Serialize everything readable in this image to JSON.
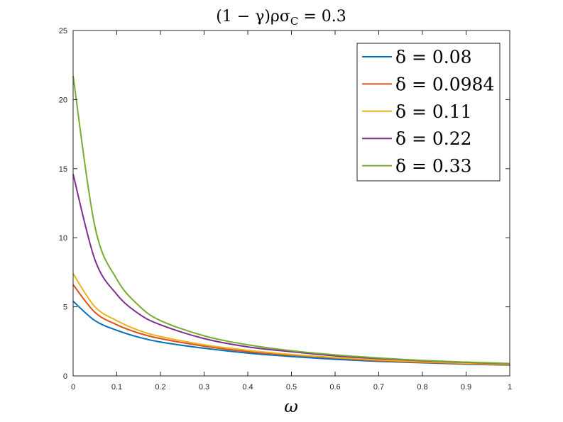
{
  "chart_data": {
    "type": "line",
    "title": "(1 − γ)ρσ_C = 0.3",
    "title_parts": {
      "lhs": "(1 − γ)ρσ",
      "sub": "C",
      "rhs": " = 0.3"
    },
    "xlabel": "ω",
    "ylabel": "",
    "xlim": [
      0,
      1
    ],
    "ylim": [
      0,
      25
    ],
    "xticks": [
      0,
      0.1,
      0.2,
      0.3,
      0.4,
      0.5,
      0.6,
      0.7,
      0.8,
      0.9,
      1
    ],
    "xtick_labels": [
      "0",
      "0.1",
      "0.2",
      "0.3",
      "0.4",
      "0.5",
      "0.6",
      "0.7",
      "0.8",
      "0.9",
      "1"
    ],
    "yticks": [
      0,
      5,
      10,
      15,
      20,
      25
    ],
    "ytick_labels": [
      "0",
      "5",
      "10",
      "15",
      "20",
      "25"
    ],
    "grid": false,
    "legend_position": "top-right",
    "x": [
      0,
      0.05,
      0.1,
      0.15,
      0.2,
      0.3,
      0.4,
      0.5,
      0.6,
      0.7,
      0.8,
      0.9,
      1.0
    ],
    "series": [
      {
        "name": "δ = 0.08",
        "color": "#0072BD",
        "values": [
          5.4,
          4.0,
          3.3,
          2.8,
          2.45,
          2.0,
          1.65,
          1.4,
          1.2,
          1.05,
          0.95,
          0.85,
          0.78
        ]
      },
      {
        "name": "δ = 0.0984",
        "color": "#D95319",
        "values": [
          6.6,
          4.6,
          3.7,
          3.1,
          2.7,
          2.15,
          1.75,
          1.5,
          1.3,
          1.1,
          0.98,
          0.88,
          0.8
        ]
      },
      {
        "name": "δ = 0.11",
        "color": "#EDB120",
        "values": [
          7.4,
          5.0,
          4.0,
          3.3,
          2.85,
          2.25,
          1.85,
          1.55,
          1.33,
          1.15,
          1.02,
          0.92,
          0.83
        ]
      },
      {
        "name": "δ = 0.22",
        "color": "#7E2F8E",
        "values": [
          14.6,
          8.4,
          5.9,
          4.5,
          3.7,
          2.7,
          2.1,
          1.75,
          1.45,
          1.25,
          1.1,
          0.98,
          0.88
        ]
      },
      {
        "name": "δ = 0.33",
        "color": "#77AC30",
        "values": [
          21.7,
          10.8,
          7.0,
          5.1,
          4.0,
          2.9,
          2.25,
          1.82,
          1.52,
          1.3,
          1.12,
          1.0,
          0.9
        ]
      }
    ]
  }
}
